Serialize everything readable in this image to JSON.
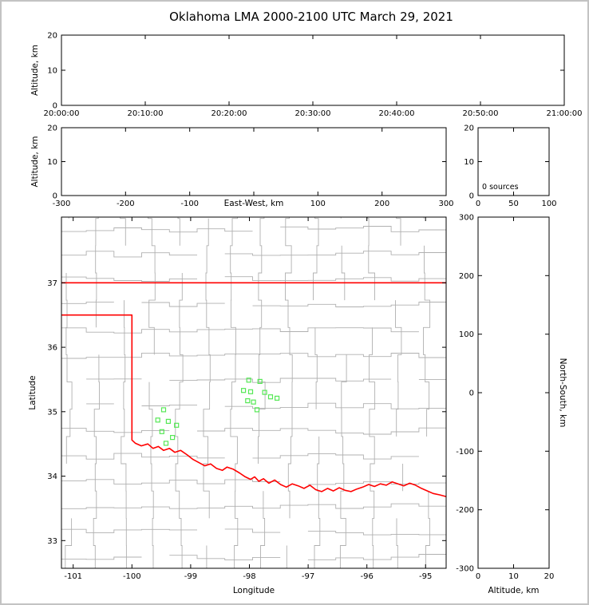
{
  "title": "Oklahoma LMA 2000-2100 UTC March 29, 2021",
  "colors": {
    "background": "#ffffff",
    "frame_border": "#c3c3c3",
    "axis": "#000000",
    "county_line": "#b0b0b0",
    "state_line": "#ff0000",
    "station_marker": "#55e855"
  },
  "panels": {
    "time_height": {
      "ylabel": "Altitude, km",
      "ytick_labels": [
        "0",
        "10",
        "20"
      ],
      "ytick_values": [
        0,
        10,
        20
      ],
      "ylim": [
        0,
        20
      ],
      "xtick_labels": [
        "20:00:00",
        "20:10:00",
        "20:20:00",
        "20:30:00",
        "20:40:00",
        "20:50:00",
        "21:00:00"
      ],
      "xtick_values": [
        0,
        1,
        2,
        3,
        4,
        5,
        6
      ],
      "xlim": [
        0,
        6
      ]
    },
    "ew_height": {
      "ylabel": "Altitude, km",
      "xlabel": "East-West, km",
      "ytick_labels": [
        "0",
        "10",
        "20"
      ],
      "ytick_values": [
        0,
        10,
        20
      ],
      "ylim": [
        0,
        20
      ],
      "xtick_labels": [
        "-300",
        "-200",
        "-100",
        "",
        "100",
        "200",
        "300"
      ],
      "xtick_values": [
        -300,
        -200,
        -100,
        0,
        100,
        200,
        300
      ],
      "xlim": [
        -300,
        300
      ]
    },
    "source_histogram": {
      "annotation": "0 sources",
      "ytick_labels": [
        "0",
        "10",
        "20"
      ],
      "ytick_values": [
        0,
        10,
        20
      ],
      "ylim": [
        0,
        20
      ],
      "xtick_labels": [
        "0",
        "50",
        "100"
      ],
      "xtick_values": [
        0,
        50,
        100
      ],
      "xlim": [
        0,
        100
      ]
    },
    "plan_map": {
      "xlabel": "Longitude",
      "ylabel": "Latitude",
      "xtick_labels": [
        "-101",
        "-100",
        "-99",
        "-98",
        "-97",
        "-96",
        "-95"
      ],
      "xtick_values": [
        -101,
        -100,
        -99,
        -98,
        -97,
        -96,
        -95
      ],
      "xlim": [
        -101.2,
        -94.65
      ],
      "ytick_labels": [
        "33",
        "34",
        "35",
        "36",
        "37"
      ],
      "ytick_values": [
        33,
        34,
        35,
        36,
        37
      ],
      "ylim": [
        32.57,
        38.02
      ]
    },
    "ns_height": {
      "xlabel": "Altitude, km",
      "ylabel_right": "North-South, km",
      "xtick_labels": [
        "0",
        "10",
        "20"
      ],
      "xtick_values": [
        0,
        10,
        20
      ],
      "xlim": [
        0,
        20
      ],
      "ytick_labels": [
        "300",
        "200",
        "100",
        "0",
        "-100",
        "-200",
        "-300"
      ],
      "ytick_values": [
        300,
        200,
        100,
        0,
        -100,
        -200,
        -300
      ],
      "ylim": [
        -300,
        300
      ]
    }
  },
  "chart_data": {
    "type": "scatter",
    "title": "Oklahoma LMA 2000-2100 UTC March 29, 2021",
    "time_range_utc": [
      "20:00:00",
      "21:00:00"
    ],
    "source_count": 0,
    "source_count_label": "0 sources",
    "lightning_source_points": [],
    "time_height_points": [],
    "ew_height_points": [],
    "ns_height_points": [],
    "altitude_histogram_values": [],
    "map_xlim": [
      -101.2,
      -94.65
    ],
    "map_ylim": [
      32.57,
      38.02
    ],
    "station_markers_lonlat": [
      [
        -99.46,
        35.03
      ],
      [
        -99.56,
        34.87
      ],
      [
        -99.38,
        34.85
      ],
      [
        -99.24,
        34.79
      ],
      [
        -99.49,
        34.69
      ],
      [
        -99.31,
        34.6
      ],
      [
        -99.42,
        34.51
      ],
      [
        -98.01,
        35.49
      ],
      [
        -97.82,
        35.47
      ],
      [
        -98.1,
        35.33
      ],
      [
        -97.98,
        35.31
      ],
      [
        -97.74,
        35.3
      ],
      [
        -97.64,
        35.23
      ],
      [
        -97.53,
        35.21
      ],
      [
        -98.03,
        35.17
      ],
      [
        -97.93,
        35.15
      ],
      [
        -97.87,
        35.03
      ]
    ],
    "state_border_lonlat": [
      [
        [
          -101.25,
          37.0
        ],
        [
          -94.6,
          37.0
        ]
      ],
      [
        [
          -101.25,
          36.5
        ],
        [
          -100.0,
          36.5
        ],
        [
          -100.0,
          34.56
        ],
        [
          -99.94,
          34.51
        ],
        [
          -99.84,
          34.47
        ],
        [
          -99.73,
          34.5
        ],
        [
          -99.64,
          34.43
        ],
        [
          -99.55,
          34.46
        ],
        [
          -99.46,
          34.4
        ],
        [
          -99.36,
          34.43
        ],
        [
          -99.27,
          34.37
        ],
        [
          -99.17,
          34.4
        ],
        [
          -99.06,
          34.33
        ],
        [
          -98.96,
          34.26
        ],
        [
          -98.86,
          34.21
        ],
        [
          -98.76,
          34.16
        ],
        [
          -98.66,
          34.19
        ],
        [
          -98.56,
          34.12
        ],
        [
          -98.46,
          34.09
        ],
        [
          -98.38,
          34.14
        ],
        [
          -98.28,
          34.11
        ],
        [
          -98.17,
          34.05
        ],
        [
          -98.07,
          33.99
        ],
        [
          -97.98,
          33.95
        ],
        [
          -97.91,
          33.99
        ],
        [
          -97.84,
          33.92
        ],
        [
          -97.76,
          33.96
        ],
        [
          -97.67,
          33.89
        ],
        [
          -97.57,
          33.94
        ],
        [
          -97.47,
          33.87
        ],
        [
          -97.37,
          33.83
        ],
        [
          -97.27,
          33.88
        ],
        [
          -97.17,
          33.85
        ],
        [
          -97.07,
          33.81
        ],
        [
          -96.97,
          33.86
        ],
        [
          -96.87,
          33.79
        ],
        [
          -96.77,
          33.76
        ],
        [
          -96.67,
          33.81
        ],
        [
          -96.57,
          33.77
        ],
        [
          -96.47,
          33.82
        ],
        [
          -96.37,
          33.78
        ],
        [
          -96.27,
          33.76
        ],
        [
          -96.17,
          33.8
        ],
        [
          -96.07,
          33.83
        ],
        [
          -95.97,
          33.87
        ],
        [
          -95.87,
          33.84
        ],
        [
          -95.77,
          33.88
        ],
        [
          -95.67,
          33.86
        ],
        [
          -95.57,
          33.91
        ],
        [
          -95.47,
          33.88
        ],
        [
          -95.37,
          33.85
        ],
        [
          -95.27,
          33.89
        ],
        [
          -95.17,
          33.86
        ],
        [
          -95.07,
          33.81
        ],
        [
          -94.97,
          33.77
        ],
        [
          -94.87,
          33.73
        ],
        [
          -94.76,
          33.71
        ],
        [
          -94.6,
          33.67
        ]
      ]
    ]
  }
}
